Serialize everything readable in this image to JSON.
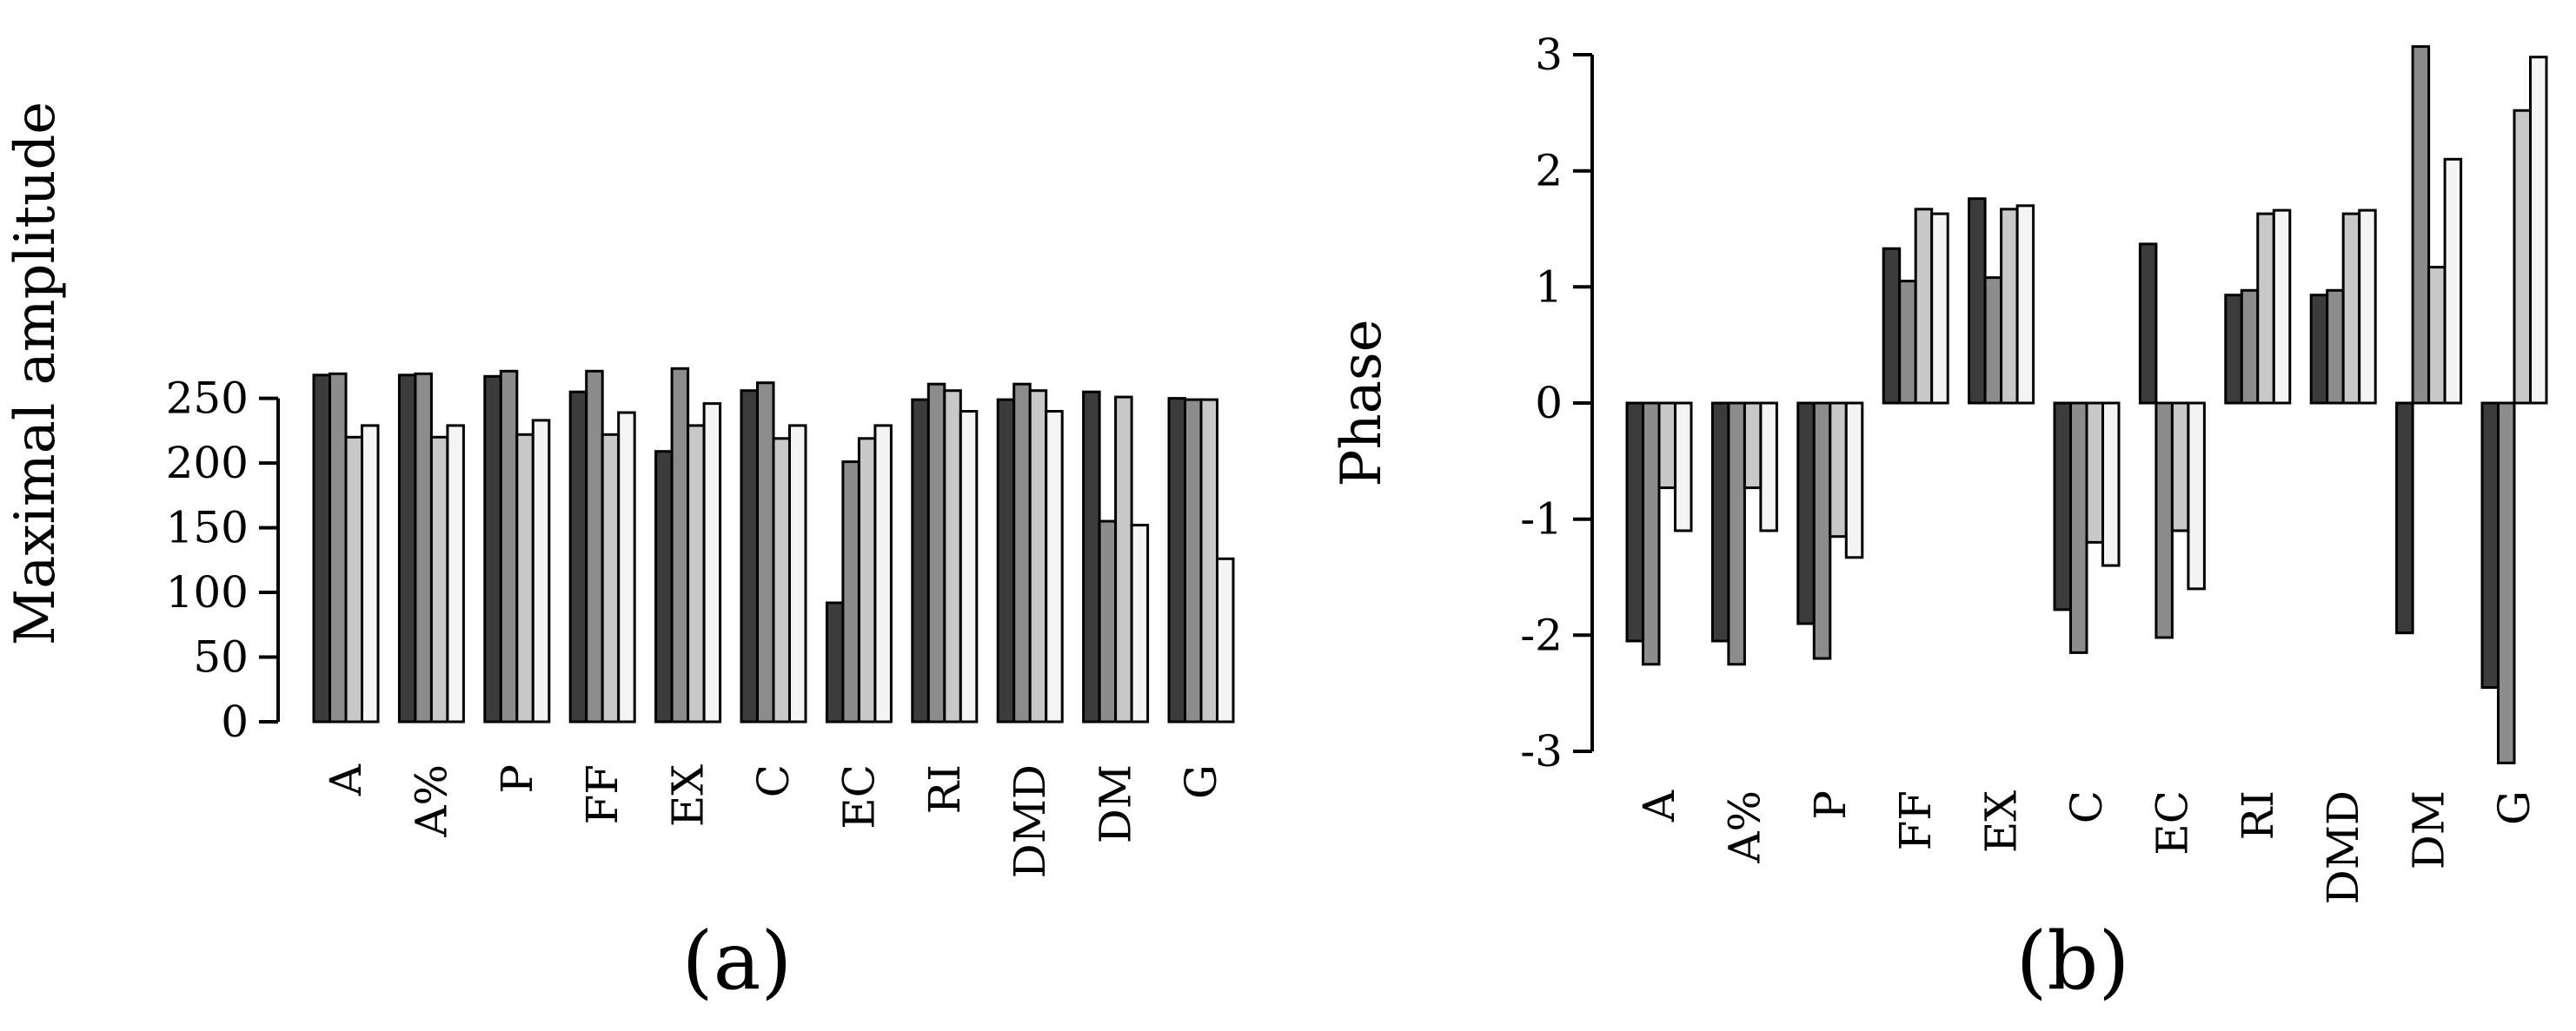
{
  "figure": {
    "panel_labels": [
      "(a)",
      "(b)"
    ]
  },
  "chart_data": [
    {
      "type": "bar",
      "title": "",
      "xlabel": "",
      "ylabel": "Maximal amplitude",
      "ylim": [
        0,
        270
      ],
      "yticks": [
        0,
        50,
        100,
        150,
        200,
        250
      ],
      "categories": [
        "A",
        "A%",
        "P",
        "FF",
        "EX",
        "C",
        "EC",
        "RI",
        "DMD",
        "DM",
        "G"
      ],
      "series_colors": [
        "#3c3c3c",
        "#8c8c8c",
        "#c8c8c8",
        "#f4f4f4"
      ],
      "series": [
        {
          "values": [
            268,
            268,
            267,
            255,
            209,
            256,
            92,
            249,
            249,
            255,
            250
          ]
        },
        {
          "values": [
            269,
            269,
            271,
            271,
            273,
            262,
            201,
            261,
            261,
            155,
            249
          ]
        },
        {
          "values": [
            220,
            220,
            222,
            222,
            229,
            219,
            219,
            256,
            256,
            251,
            249
          ]
        },
        {
          "values": [
            229,
            229,
            233,
            239,
            246,
            229,
            229,
            240,
            240,
            152,
            126
          ]
        }
      ],
      "grid": false,
      "legend": "none"
    },
    {
      "type": "bar",
      "title": "",
      "xlabel": "",
      "ylabel": "Phase",
      "ylim": [
        -3,
        3
      ],
      "yticks": [
        -3,
        -2,
        -1,
        0,
        1,
        2,
        3
      ],
      "categories": [
        "A",
        "A%",
        "P",
        "FF",
        "EX",
        "C",
        "EC",
        "RI",
        "DMD",
        "DM",
        "G"
      ],
      "series_colors": [
        "#3c3c3c",
        "#8c8c8c",
        "#c8c8c8",
        "#f4f4f4"
      ],
      "series": [
        {
          "values": [
            -2.05,
            -2.05,
            -1.9,
            1.33,
            1.76,
            -1.78,
            1.37,
            0.93,
            0.93,
            -1.98,
            -2.45
          ]
        },
        {
          "values": [
            -2.25,
            -2.25,
            -2.2,
            1.05,
            1.08,
            -2.15,
            -2.02,
            0.97,
            0.97,
            3.07,
            -3.1
          ]
        },
        {
          "values": [
            -0.73,
            -0.73,
            -1.15,
            1.67,
            1.67,
            -1.2,
            -1.1,
            1.63,
            1.63,
            1.17,
            2.52
          ]
        },
        {
          "values": [
            -1.1,
            -1.1,
            -1.33,
            1.63,
            1.7,
            -1.4,
            -1.6,
            1.66,
            1.66,
            2.1,
            2.98
          ]
        }
      ],
      "grid": false,
      "legend": "none"
    }
  ]
}
